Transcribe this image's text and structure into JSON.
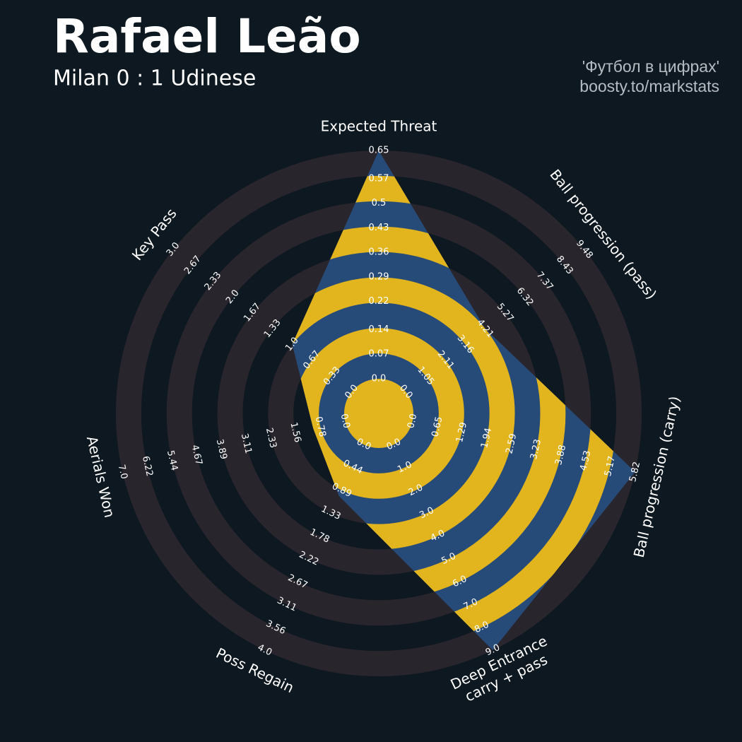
{
  "chart_data": {
    "type": "radar",
    "title": "Rafael Leão",
    "subtitle": "Milan 0 : 1 Udinese",
    "credits": [
      "'Футбол в цифрах'",
      "boosty.to/markstats"
    ],
    "colors": {
      "background": "#0e1820",
      "ring": "#29252c",
      "fill": "#274b79",
      "alt_fill": "#e2b51e",
      "text": "#ffffff",
      "credit": "#b6bcc3"
    },
    "params": [
      {
        "name": [
          "Expected Threat"
        ],
        "lim": [
          0,
          0.65
        ],
        "value": 0.65,
        "ticks": [
          {
            "value": 0,
            "label": "0.0"
          },
          0.07,
          0.14,
          0.22,
          0.29,
          0.36,
          0.43,
          0.5,
          0.57,
          0.65
        ]
      },
      {
        "name": [
          "Ball progression (pass)"
        ],
        "lim": [
          0,
          9.48
        ],
        "value": 4.21,
        "ticks": [
          {
            "value": 0,
            "label": "0.0"
          },
          1.05,
          2.11,
          3.16,
          4.21,
          5.27,
          6.32,
          7.37,
          8.43,
          9.48
        ]
      },
      {
        "name": [
          "Ball progression (carry)"
        ],
        "lim": [
          0,
          5.82
        ],
        "value": 5.82,
        "ticks": [
          {
            "value": 0,
            "label": "0.0"
          },
          0.65,
          1.29,
          1.94,
          2.59,
          3.23,
          3.88,
          4.53,
          5.17,
          5.82
        ]
      },
      {
        "name": [
          "Deep Entrance",
          "carry + pass"
        ],
        "lim": [
          0,
          9
        ],
        "value": 9,
        "ticks": [
          {
            "value": 0,
            "label": "0.0"
          },
          {
            "value": 1,
            "label": "1.0"
          },
          {
            "value": 2,
            "label": "2.0"
          },
          {
            "value": 3,
            "label": "3.0"
          },
          {
            "value": 4,
            "label": "4.0"
          },
          {
            "value": 5,
            "label": "5.0"
          },
          {
            "value": 6,
            "label": "6.0"
          },
          {
            "value": 7,
            "label": "7.0"
          },
          {
            "value": 8,
            "label": "8.0"
          },
          {
            "value": 9,
            "label": "9.0"
          }
        ]
      },
      {
        "name": [
          "Poss Regain"
        ],
        "lim": [
          0,
          4
        ],
        "value": 1,
        "ticks": [
          {
            "value": 0,
            "label": "0.0"
          },
          0.44,
          0.89,
          1.33,
          1.78,
          2.22,
          2.67,
          3.11,
          3.56,
          {
            "value": 4,
            "label": "4.0"
          }
        ]
      },
      {
        "name": [
          "Aerials Won"
        ],
        "lim": [
          0,
          7
        ],
        "value": 1,
        "ticks": [
          {
            "value": 0,
            "label": "0.0"
          },
          0.78,
          1.56,
          2.33,
          3.11,
          3.89,
          4.67,
          5.44,
          6.22,
          {
            "value": 7,
            "label": "7.0"
          }
        ]
      },
      {
        "name": [
          "Key Pass"
        ],
        "lim": [
          0,
          3
        ],
        "value": 1,
        "ticks": [
          {
            "value": 0,
            "label": "0.0"
          },
          0.33,
          0.67,
          {
            "value": 1,
            "label": "1.0"
          },
          1.33,
          1.67,
          {
            "value": 2,
            "label": "2.0"
          },
          2.33,
          2.67,
          {
            "value": 3,
            "label": "3.0"
          }
        ]
      }
    ]
  }
}
